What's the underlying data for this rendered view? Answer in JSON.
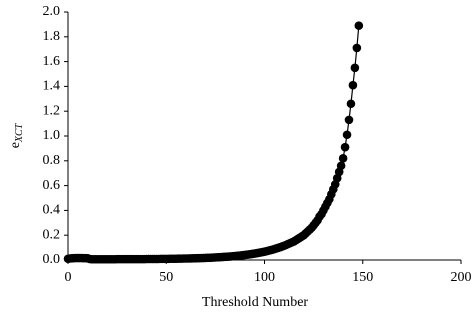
{
  "chart_data": {
    "type": "line",
    "xlabel": "Threshold Number",
    "ylabel": "e",
    "ylabel_subscript": "XCT",
    "color": "#000000",
    "x": [
      0,
      1,
      2,
      3,
      4,
      5,
      6,
      7,
      8,
      9,
      10,
      11,
      12,
      13,
      14,
      15,
      16,
      17,
      18,
      19,
      20,
      21,
      22,
      23,
      24,
      25,
      26,
      27,
      28,
      29,
      30,
      31,
      32,
      33,
      34,
      35,
      36,
      37,
      38,
      39,
      40,
      41,
      42,
      43,
      44,
      45,
      46,
      47,
      48,
      49,
      50,
      51,
      52,
      53,
      54,
      55,
      56,
      57,
      58,
      59,
      60,
      61,
      62,
      63,
      64,
      65,
      66,
      67,
      68,
      69,
      70,
      71,
      72,
      73,
      74,
      75,
      76,
      77,
      78,
      79,
      80,
      81,
      82,
      83,
      84,
      85,
      86,
      87,
      88,
      89,
      90,
      91,
      92,
      93,
      94,
      95,
      96,
      97,
      98,
      99,
      100,
      101,
      102,
      103,
      104,
      105,
      106,
      107,
      108,
      109,
      110,
      111,
      112,
      113,
      114,
      115,
      116,
      117,
      118,
      119,
      120,
      121,
      122,
      123,
      124,
      125,
      126,
      127,
      128,
      129,
      130,
      131,
      132,
      133,
      134,
      135,
      136,
      137,
      138,
      139,
      140,
      141,
      142,
      143,
      144,
      145,
      146,
      147,
      148
    ],
    "values": [
      0.01,
      0.012,
      0.014,
      0.015,
      0.016,
      0.016,
      0.016,
      0.016,
      0.015,
      0.015,
      0.014,
      0.008,
      0.006,
      0.006,
      0.006,
      0.006,
      0.006,
      0.006,
      0.006,
      0.006,
      0.006,
      0.006,
      0.006,
      0.006,
      0.006,
      0.007,
      0.007,
      0.007,
      0.007,
      0.007,
      0.007,
      0.007,
      0.007,
      0.007,
      0.007,
      0.007,
      0.007,
      0.007,
      0.007,
      0.007,
      0.008,
      0.008,
      0.008,
      0.008,
      0.008,
      0.008,
      0.008,
      0.009,
      0.009,
      0.009,
      0.009,
      0.009,
      0.01,
      0.01,
      0.01,
      0.01,
      0.011,
      0.011,
      0.011,
      0.012,
      0.012,
      0.012,
      0.013,
      0.013,
      0.014,
      0.014,
      0.015,
      0.015,
      0.016,
      0.016,
      0.017,
      0.018,
      0.018,
      0.019,
      0.02,
      0.021,
      0.022,
      0.023,
      0.024,
      0.025,
      0.026,
      0.027,
      0.028,
      0.029,
      0.031,
      0.032,
      0.034,
      0.035,
      0.037,
      0.039,
      0.041,
      0.043,
      0.045,
      0.047,
      0.05,
      0.052,
      0.055,
      0.058,
      0.061,
      0.064,
      0.067,
      0.071,
      0.075,
      0.079,
      0.083,
      0.088,
      0.093,
      0.098,
      0.103,
      0.109,
      0.115,
      0.122,
      0.129,
      0.136,
      0.143,
      0.15,
      0.16,
      0.17,
      0.18,
      0.19,
      0.2,
      0.215,
      0.23,
      0.245,
      0.26,
      0.28,
      0.3,
      0.32,
      0.35,
      0.37,
      0.4,
      0.43,
      0.46,
      0.49,
      0.53,
      0.57,
      0.61,
      0.66,
      0.71,
      0.76,
      0.82,
      0.91,
      1.01,
      1.13,
      1.26,
      1.41,
      1.55,
      1.71,
      1.89
    ],
    "xlim": [
      0,
      200
    ],
    "xticks": [
      0,
      50,
      100,
      150,
      200
    ],
    "ylim": [
      0,
      2
    ],
    "yticks": [
      {
        "value": 0,
        "label": "0.0"
      },
      {
        "value": 0.2,
        "label": "0.2"
      },
      {
        "value": 0.4,
        "label": "0.4"
      },
      {
        "value": 0.6,
        "label": "0.6"
      },
      {
        "value": 0.8,
        "label": "0.8"
      },
      {
        "value": 1,
        "label": "1.0"
      },
      {
        "value": 1.2,
        "label": "1.2"
      },
      {
        "value": 1.4,
        "label": "1.4"
      },
      {
        "value": 1.6,
        "label": "1.6"
      },
      {
        "value": 1.8,
        "label": "1.8"
      },
      {
        "value": 2,
        "label": "2.0"
      }
    ],
    "grid": false
  }
}
